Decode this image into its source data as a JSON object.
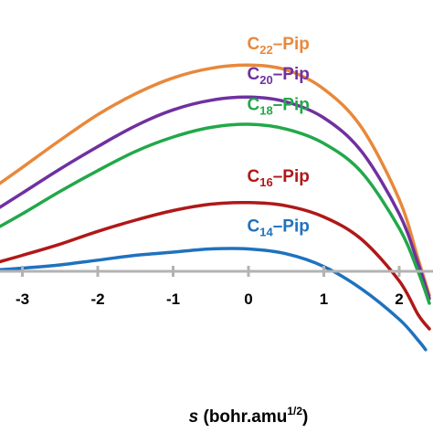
{
  "chart_data": {
    "type": "line",
    "xlabel": {
      "symbol": "s",
      "text": " (bohr.amu",
      "superscript": "1/2",
      "close": ")"
    },
    "ylabel": "",
    "xlim": [
      -3.3,
      2.4
    ],
    "ylim": [
      -0.55,
      1.5
    ],
    "x_ticks": [
      {
        "value": -3,
        "label": "-3"
      },
      {
        "value": -2,
        "label": "-2"
      },
      {
        "value": -1,
        "label": "-1"
      },
      {
        "value": 0,
        "label": "0"
      },
      {
        "value": 1,
        "label": "1"
      },
      {
        "value": 2,
        "label": "2"
      }
    ],
    "grid": false,
    "legend": "inline labels above each curve",
    "series": [
      {
        "name": "C22–Pip",
        "label_base": "C",
        "label_sub": "22",
        "label_tail": "–Pip",
        "label_at": {
          "x": 0.2,
          "y": 1.39
        },
        "color": "#E8883B",
        "points": [
          [
            -3.3,
            0.55
          ],
          [
            -3.0,
            0.65
          ],
          [
            -2.5,
            0.82
          ],
          [
            -2.0,
            0.98
          ],
          [
            -1.5,
            1.11
          ],
          [
            -1.0,
            1.21
          ],
          [
            -0.5,
            1.27
          ],
          [
            0.0,
            1.29
          ],
          [
            0.5,
            1.26
          ],
          [
            1.0,
            1.14
          ],
          [
            1.5,
            0.9
          ],
          [
            2.0,
            0.45
          ],
          [
            2.25,
            0.08
          ],
          [
            2.4,
            -0.15
          ]
        ]
      },
      {
        "name": "C20–Pip",
        "label_base": "C",
        "label_sub": "20",
        "label_tail": "–Pip",
        "label_at": {
          "x": 0.2,
          "y": 1.2
        },
        "color": "#7030A0",
        "points": [
          [
            -3.3,
            0.4
          ],
          [
            -3.0,
            0.49
          ],
          [
            -2.5,
            0.64
          ],
          [
            -2.0,
            0.78
          ],
          [
            -1.5,
            0.91
          ],
          [
            -1.0,
            1.01
          ],
          [
            -0.5,
            1.07
          ],
          [
            0.0,
            1.09
          ],
          [
            0.5,
            1.06
          ],
          [
            1.0,
            0.96
          ],
          [
            1.5,
            0.75
          ],
          [
            2.0,
            0.36
          ],
          [
            2.25,
            0.05
          ],
          [
            2.4,
            -0.17
          ]
        ]
      },
      {
        "name": "C18–Pip",
        "label_base": "C",
        "label_sub": "18",
        "label_tail": "–Pip",
        "label_at": {
          "x": 0.2,
          "y": 1.01
        },
        "color": "#22A84A",
        "points": [
          [
            -3.3,
            0.28
          ],
          [
            -3.0,
            0.36
          ],
          [
            -2.5,
            0.5
          ],
          [
            -2.0,
            0.63
          ],
          [
            -1.5,
            0.75
          ],
          [
            -1.0,
            0.84
          ],
          [
            -0.5,
            0.9
          ],
          [
            0.0,
            0.92
          ],
          [
            0.5,
            0.89
          ],
          [
            1.0,
            0.8
          ],
          [
            1.5,
            0.62
          ],
          [
            2.0,
            0.27
          ],
          [
            2.25,
            0.0
          ],
          [
            2.4,
            -0.2
          ]
        ]
      },
      {
        "name": "C16–Pip",
        "label_base": "C",
        "label_sub": "16",
        "label_tail": "–Pip",
        "label_at": {
          "x": 0.2,
          "y": 0.56
        },
        "color": "#B01818",
        "points": [
          [
            -3.3,
            0.06
          ],
          [
            -3.0,
            0.1
          ],
          [
            -2.5,
            0.17
          ],
          [
            -2.0,
            0.25
          ],
          [
            -1.5,
            0.32
          ],
          [
            -1.0,
            0.38
          ],
          [
            -0.5,
            0.42
          ],
          [
            0.0,
            0.43
          ],
          [
            0.5,
            0.41
          ],
          [
            1.0,
            0.34
          ],
          [
            1.5,
            0.2
          ],
          [
            2.0,
            -0.06
          ],
          [
            2.25,
            -0.27
          ],
          [
            2.4,
            -0.36
          ]
        ]
      },
      {
        "name": "C14–Pip",
        "label_base": "C",
        "label_sub": "14",
        "label_tail": "–Pip",
        "label_at": {
          "x": 0.2,
          "y": 0.25
        },
        "color": "#1F72BE",
        "points": [
          [
            -3.3,
            0.01
          ],
          [
            -3.0,
            0.02
          ],
          [
            -2.5,
            0.04
          ],
          [
            -2.0,
            0.07
          ],
          [
            -1.5,
            0.1
          ],
          [
            -1.0,
            0.12
          ],
          [
            -0.5,
            0.14
          ],
          [
            0.0,
            0.14
          ],
          [
            0.5,
            0.11
          ],
          [
            1.0,
            0.03
          ],
          [
            1.5,
            -0.11
          ],
          [
            2.0,
            -0.3
          ],
          [
            2.25,
            -0.43
          ],
          [
            2.35,
            -0.49
          ]
        ]
      }
    ]
  }
}
